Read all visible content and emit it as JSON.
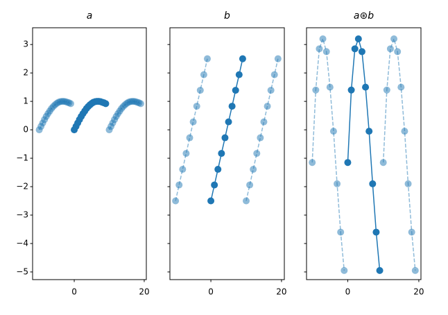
{
  "chart_data": [
    {
      "type": "line",
      "title": "a",
      "xlim": [
        -11.9,
        20.6
      ],
      "ylim": [
        -5.27,
        3.59
      ],
      "xticks": [
        0,
        20
      ],
      "yticks": [
        {
          "value": -5,
          "label": "−5"
        },
        {
          "value": -4,
          "label": "−4"
        },
        {
          "value": -3,
          "label": "−3"
        },
        {
          "value": -2,
          "label": "−2"
        },
        {
          "value": -1,
          "label": "−1"
        },
        0,
        1,
        2,
        3
      ],
      "show_ytick_labels": true,
      "series": [
        {
          "color": "#1f77b4",
          "alpha": 0.5,
          "linestyle": "dashed",
          "x": [
            -10,
            -9.5,
            -9,
            -8.5,
            -8,
            -7.5,
            -7,
            -6.5,
            -6,
            -5.5,
            -5,
            -4.5,
            -4,
            -3.5,
            -3,
            -2.5,
            -2,
            -1.5,
            -1
          ],
          "values": [
            0,
            0.12,
            0.24,
            0.36,
            0.47,
            0.57,
            0.66,
            0.75,
            0.82,
            0.88,
            0.93,
            0.97,
            0.99,
            1.0,
            1.0,
            0.99,
            0.97,
            0.95,
            0.92
          ]
        },
        {
          "color": "#1f77b4",
          "alpha": 1,
          "linestyle": "solid",
          "x": [
            0,
            0.5,
            1,
            1.5,
            2,
            2.5,
            3,
            3.5,
            4,
            4.5,
            5,
            5.5,
            6,
            6.5,
            7,
            7.5,
            8,
            8.5,
            9
          ],
          "values": [
            0,
            0.12,
            0.24,
            0.36,
            0.47,
            0.57,
            0.66,
            0.75,
            0.82,
            0.88,
            0.93,
            0.97,
            0.99,
            1.0,
            1.0,
            0.99,
            0.97,
            0.95,
            0.92
          ]
        },
        {
          "color": "#1f77b4",
          "alpha": 0.5,
          "linestyle": "dashed",
          "x": [
            10,
            10.5,
            11,
            11.5,
            12,
            12.5,
            13,
            13.5,
            14,
            14.5,
            15,
            15.5,
            16,
            16.5,
            17,
            17.5,
            18,
            18.5,
            19
          ],
          "values": [
            0,
            0.12,
            0.24,
            0.36,
            0.47,
            0.57,
            0.66,
            0.75,
            0.82,
            0.88,
            0.93,
            0.97,
            0.99,
            1.0,
            1.0,
            0.99,
            0.97,
            0.95,
            0.92
          ]
        }
      ]
    },
    {
      "type": "line",
      "title": "b",
      "xlim": [
        -11.6,
        20.8
      ],
      "ylim": [
        -5.27,
        3.59
      ],
      "xticks": [
        0,
        20
      ],
      "yticks": [
        -5,
        -4,
        -3,
        -2,
        -1,
        0,
        1,
        2,
        3
      ],
      "show_ytick_labels": false,
      "series": [
        {
          "color": "#1f77b4",
          "alpha": 0.5,
          "linestyle": "dashed",
          "x": [
            -10,
            -9,
            -8,
            -7,
            -6,
            -5,
            -4,
            -3,
            -2,
            -1
          ],
          "values": [
            -2.5,
            -1.94,
            -1.39,
            -0.83,
            -0.28,
            0.28,
            0.83,
            1.39,
            1.94,
            2.5
          ]
        },
        {
          "color": "#1f77b4",
          "alpha": 1,
          "linestyle": "solid",
          "x": [
            0,
            1,
            2,
            3,
            4,
            5,
            6,
            7,
            8,
            9
          ],
          "values": [
            -2.5,
            -1.94,
            -1.39,
            -0.83,
            -0.28,
            0.28,
            0.83,
            1.39,
            1.94,
            2.5
          ]
        },
        {
          "color": "#1f77b4",
          "alpha": 0.5,
          "linestyle": "dashed",
          "x": [
            10,
            11,
            12,
            13,
            14,
            15,
            16,
            17,
            18,
            19
          ],
          "values": [
            -2.5,
            -1.94,
            -1.39,
            -0.83,
            -0.28,
            0.28,
            0.83,
            1.39,
            1.94,
            2.5
          ]
        }
      ]
    },
    {
      "type": "line",
      "title": "a⊛b",
      "xlim": [
        -11.6,
        20.6
      ],
      "ylim": [
        -5.27,
        3.59
      ],
      "xticks": [
        0,
        20
      ],
      "yticks": [
        -5,
        -4,
        -3,
        -2,
        -1,
        0,
        1,
        2,
        3
      ],
      "show_ytick_labels": false,
      "series": [
        {
          "color": "#1f77b4",
          "alpha": 0.5,
          "linestyle": "dashed",
          "x": [
            -10,
            -9,
            -8,
            -7,
            -6,
            -5,
            -4,
            -3,
            -2,
            -1
          ],
          "values": [
            -1.15,
            1.4,
            2.85,
            3.2,
            2.75,
            1.5,
            -0.05,
            -1.9,
            -3.6,
            -4.95
          ]
        },
        {
          "color": "#1f77b4",
          "alpha": 1,
          "linestyle": "solid",
          "x": [
            0,
            1,
            2,
            3,
            4,
            5,
            6,
            7,
            8,
            9
          ],
          "values": [
            -1.15,
            1.4,
            2.85,
            3.2,
            2.75,
            1.5,
            -0.05,
            -1.9,
            -3.6,
            -4.95
          ]
        },
        {
          "color": "#1f77b4",
          "alpha": 0.5,
          "linestyle": "dashed",
          "x": [
            10,
            11,
            12,
            13,
            14,
            15,
            16,
            17,
            18,
            19
          ],
          "values": [
            -1.15,
            1.4,
            2.85,
            3.2,
            2.75,
            1.5,
            -0.05,
            -1.9,
            -3.6,
            -4.95
          ]
        }
      ]
    }
  ]
}
